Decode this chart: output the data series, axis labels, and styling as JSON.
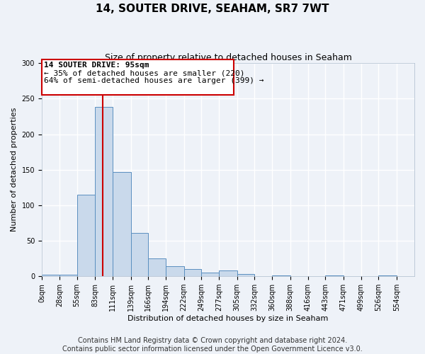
{
  "title": "14, SOUTER DRIVE, SEAHAM, SR7 7WT",
  "subtitle": "Size of property relative to detached houses in Seaham",
  "xlabel": "Distribution of detached houses by size in Seaham",
  "ylabel": "Number of detached properties",
  "bin_labels": [
    "0sqm",
    "28sqm",
    "55sqm",
    "83sqm",
    "111sqm",
    "139sqm",
    "166sqm",
    "194sqm",
    "222sqm",
    "249sqm",
    "277sqm",
    "305sqm",
    "332sqm",
    "360sqm",
    "388sqm",
    "416sqm",
    "443sqm",
    "471sqm",
    "499sqm",
    "526sqm",
    "554sqm"
  ],
  "bin_edges": [
    0,
    28,
    55,
    83,
    111,
    139,
    166,
    194,
    222,
    249,
    277,
    305,
    332,
    360,
    388,
    416,
    443,
    471,
    499,
    526,
    554
  ],
  "bar_heights": [
    2,
    2,
    115,
    238,
    147,
    61,
    25,
    14,
    10,
    5,
    8,
    3,
    0,
    1,
    0,
    0,
    1,
    0,
    0,
    1
  ],
  "bar_color": "#c9d9eb",
  "bar_edge_color": "#5a8fc0",
  "property_value": 95,
  "vline_color": "#cc0000",
  "annotation_box_color": "#cc0000",
  "annotation_lines": [
    "14 SOUTER DRIVE: 95sqm",
    "← 35% of detached houses are smaller (220)",
    "64% of semi-detached houses are larger (399) →"
  ],
  "ylim": [
    0,
    300
  ],
  "yticks": [
    0,
    50,
    100,
    150,
    200,
    250,
    300
  ],
  "footer_lines": [
    "Contains HM Land Registry data © Crown copyright and database right 2024.",
    "Contains public sector information licensed under the Open Government Licence v3.0."
  ],
  "background_color": "#eef2f8",
  "grid_color": "#ffffff",
  "title_fontsize": 11,
  "subtitle_fontsize": 9,
  "annotation_fontsize": 8,
  "footer_fontsize": 7,
  "axis_label_fontsize": 8,
  "tick_fontsize": 7
}
